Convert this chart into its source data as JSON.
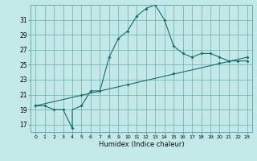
{
  "xlabel": "Humidex (Indice chaleur)",
  "bg_color": "#c2e8e8",
  "grid_color": "#6aadad",
  "line_color": "#1a6b6b",
  "xlim": [
    -0.5,
    23.5
  ],
  "ylim": [
    16.0,
    33.0
  ],
  "xticks": [
    0,
    1,
    2,
    3,
    4,
    5,
    6,
    7,
    8,
    9,
    10,
    11,
    12,
    13,
    14,
    15,
    16,
    17,
    18,
    19,
    20,
    21,
    22,
    23
  ],
  "yticks": [
    17,
    19,
    21,
    23,
    25,
    27,
    29,
    31
  ],
  "line1_x": [
    0,
    1,
    2,
    3,
    4,
    4,
    5,
    6,
    7,
    8,
    9,
    10,
    11,
    12,
    13,
    14,
    15,
    16,
    17,
    18,
    19,
    20,
    21,
    22,
    23
  ],
  "line1_y": [
    19.5,
    19.5,
    19.0,
    19.0,
    16.5,
    19.0,
    19.5,
    21.5,
    21.5,
    26.0,
    28.5,
    29.5,
    31.5,
    32.5,
    33.0,
    31.0,
    27.5,
    26.5,
    26.0,
    26.5,
    26.5,
    26.0,
    25.5,
    25.5,
    25.5
  ],
  "mk1_x": [
    0,
    1,
    2,
    3,
    4,
    5,
    6,
    7,
    8,
    9,
    10,
    11,
    12,
    13,
    14,
    15,
    16,
    17,
    18,
    19,
    20,
    21,
    22,
    23
  ],
  "mk1_y": [
    19.5,
    19.5,
    19.0,
    19.0,
    16.5,
    19.5,
    21.5,
    21.5,
    26.0,
    28.5,
    29.5,
    31.5,
    32.5,
    33.0,
    31.0,
    27.5,
    26.5,
    26.0,
    26.5,
    26.5,
    26.0,
    25.5,
    25.5,
    25.5
  ],
  "line2_x": [
    0,
    23
  ],
  "line2_y": [
    19.5,
    26.0
  ],
  "mk2_x": [
    0,
    5,
    10,
    15,
    20,
    23
  ],
  "mk2_y": [
    19.5,
    20.9,
    22.4,
    23.9,
    25.3,
    26.0
  ]
}
